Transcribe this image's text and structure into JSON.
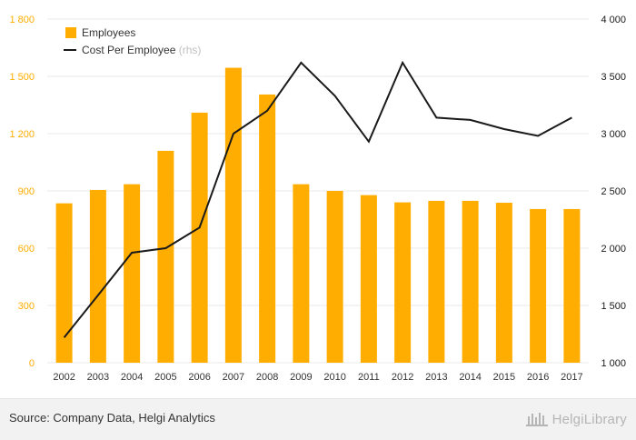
{
  "chart_data": {
    "type": "bar",
    "categories": [
      "2002",
      "2003",
      "2004",
      "2005",
      "2006",
      "2007",
      "2008",
      "2009",
      "2010",
      "2011",
      "2012",
      "2013",
      "2014",
      "2015",
      "2016",
      "2017"
    ],
    "series": [
      {
        "name": "Employees",
        "type": "bar",
        "axis": "left",
        "color": "#ffad00",
        "values": [
          835,
          905,
          935,
          1110,
          1310,
          1545,
          1405,
          935,
          900,
          878,
          840,
          848,
          848,
          838,
          805,
          805
        ]
      },
      {
        "name": "Cost Per Employee",
        "legend_suffix": "(rhs)",
        "type": "line",
        "axis": "right",
        "color": "#1a1a1a",
        "values": [
          1220,
          1590,
          1960,
          2000,
          2180,
          3000,
          3200,
          3620,
          3330,
          2930,
          3620,
          3140,
          3120,
          3040,
          2980,
          3140
        ]
      }
    ],
    "y_left": {
      "min": 0,
      "max": 1800,
      "ticks": [
        0,
        300,
        600,
        900,
        1200,
        1500,
        1800
      ],
      "tick_labels": [
        "0",
        "300",
        "600",
        "900",
        "1 200",
        "1 500",
        "1 800"
      ]
    },
    "y_right": {
      "min": 1000,
      "max": 4000,
      "ticks": [
        1000,
        1500,
        2000,
        2500,
        3000,
        3500,
        4000
      ],
      "tick_labels": [
        "1 000",
        "1 500",
        "2 000",
        "2 500",
        "3 000",
        "3 500",
        "4 000"
      ]
    },
    "grid": true,
    "legend_position": "top-left",
    "left_axis_color": "#ffad00"
  },
  "footer": {
    "source": "Source: Company Data, Helgi Analytics",
    "logo": "HelgiLibrary"
  }
}
